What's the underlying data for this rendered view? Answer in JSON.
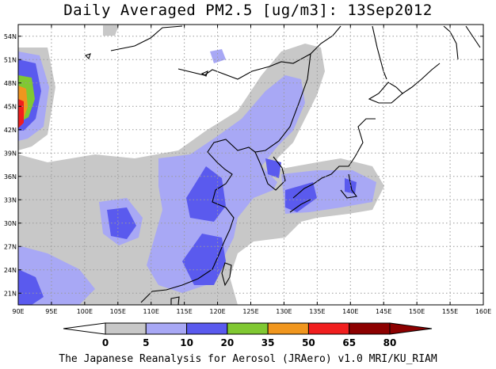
{
  "title": "Daily Averaged PM2.5 [ug/m3]: 13Sep2012",
  "footer": "The Japanese Reanalysis for Aerosol (JRAero) v1.0 MRI/KU_RIAM",
  "map": {
    "lon_range": [
      90,
      160
    ],
    "lat_range": [
      19.5,
      55.5
    ],
    "lon_ticks": [
      "90E",
      "95E",
      "100E",
      "105E",
      "110E",
      "115E",
      "120E",
      "125E",
      "130E",
      "135E",
      "140E",
      "145E",
      "150E",
      "155E",
      "160E"
    ],
    "lat_ticks": [
      "21N",
      "24N",
      "27N",
      "30N",
      "33N",
      "36N",
      "39N",
      "42N",
      "45N",
      "48N",
      "51N",
      "54N"
    ],
    "grid": true
  },
  "colorbar": {
    "labels": [
      "0",
      "5",
      "10",
      "20",
      "35",
      "50",
      "65",
      "80"
    ],
    "colors": [
      "#ffffff",
      "#c8c8c8",
      "#a8a8f5",
      "#5a5aee",
      "#80c832",
      "#f0961e",
      "#f01e1e",
      "#8c0000"
    ]
  }
}
